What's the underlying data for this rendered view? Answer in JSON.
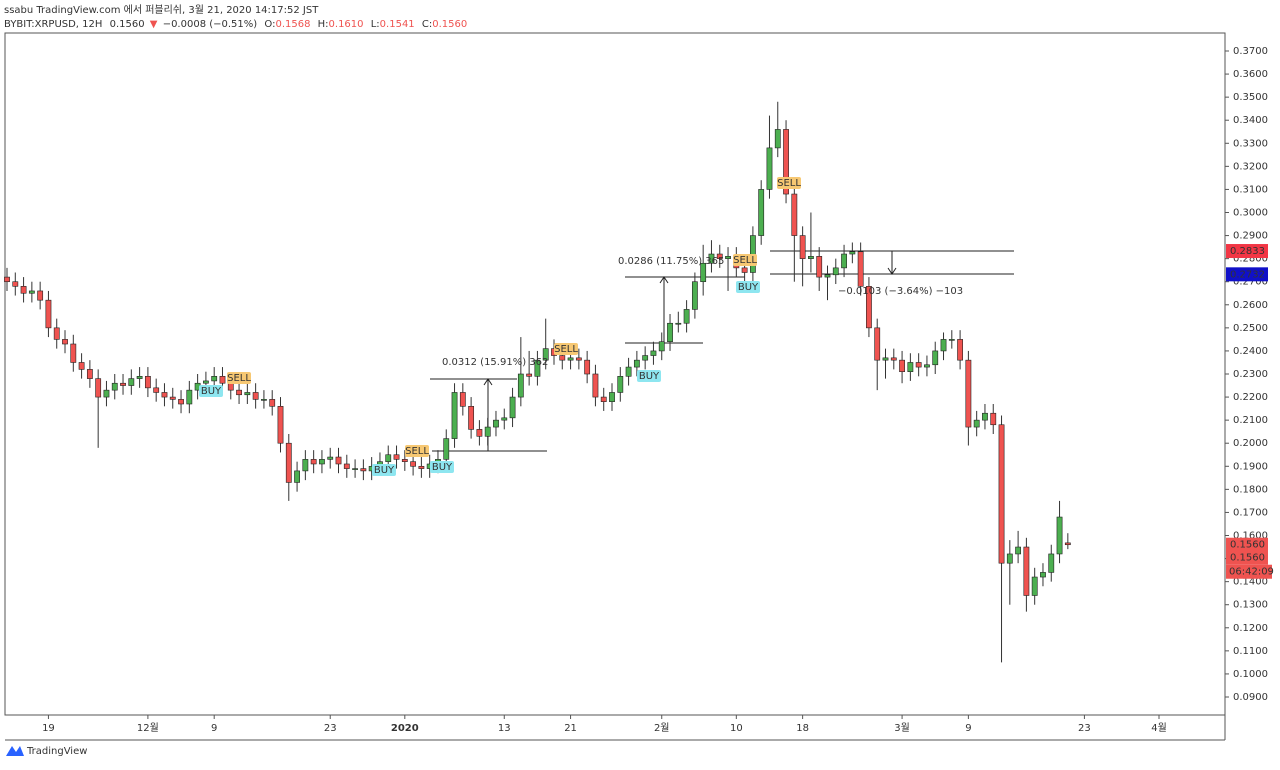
{
  "header": {
    "line1": "ssabu TradingView.com 에서 퍼블리쉬, 3월 21, 2020 14:17:52 JST",
    "symbol": "BYBIT:XRPUSD, 12H",
    "last": "0.1560",
    "change_arrow": "▼",
    "change": "−0.0008 (−0.51%)",
    "o_label": "O:",
    "o": "0.1568",
    "h_label": "H:",
    "h": "0.1610",
    "l_label": "L:",
    "l": "0.1541",
    "c_label": "C:",
    "c": "0.1560"
  },
  "footer": {
    "logo": "TradingView"
  },
  "chart_data": {
    "type": "candlestick",
    "categories": [
      null,
      null,
      null,
      null,
      null,
      "19",
      null,
      null,
      null,
      null,
      null,
      null,
      null,
      null,
      null,
      null,
      null,
      "12월",
      null,
      null,
      null,
      null,
      null,
      null,
      null,
      "9",
      null,
      null,
      null,
      null,
      null,
      null,
      null,
      null,
      null,
      null,
      null,
      null,
      null,
      "23",
      null,
      null,
      null,
      null,
      null,
      null,
      null,
      null,
      "2020",
      null,
      null,
      null,
      null,
      null,
      null,
      null,
      null,
      null,
      null,
      null,
      "13",
      null,
      null,
      null,
      null,
      null,
      null,
      null,
      "21",
      null,
      null,
      null,
      null,
      null,
      null,
      null,
      null,
      null,
      null,
      "2월",
      null,
      null,
      null,
      null,
      null,
      null,
      null,
      null,
      "10",
      null,
      null,
      null,
      null,
      null,
      null,
      null,
      "18",
      null,
      null,
      null,
      null,
      null,
      null,
      null,
      null,
      null,
      null,
      null,
      "3월",
      null,
      null,
      null,
      null,
      null,
      null,
      null,
      "9",
      null,
      null,
      null,
      null,
      null,
      null,
      null,
      null,
      null,
      null,
      null,
      null,
      null,
      "23",
      null,
      null,
      null,
      null,
      null,
      null,
      null,
      null,
      "4월"
    ],
    "open": [
      0.272,
      0.27,
      0.268,
      0.265,
      0.266,
      0.262,
      0.25,
      0.245,
      0.243,
      0.235,
      0.232,
      0.228,
      0.22,
      0.223,
      0.226,
      0.225,
      0.228,
      0.229,
      0.224,
      0.222,
      0.22,
      0.219,
      0.217,
      0.223,
      0.226,
      0.227,
      0.229,
      0.226,
      0.223,
      0.221,
      0.222,
      0.219,
      0.219,
      0.216,
      0.2,
      0.183,
      0.188,
      0.193,
      0.191,
      0.193,
      0.194,
      0.191,
      0.189,
      0.189,
      0.188,
      0.19,
      0.192,
      0.195,
      0.193,
      0.192,
      0.19,
      0.189,
      0.191,
      0.193,
      0.202,
      0.222,
      0.216,
      0.206,
      0.203,
      0.207,
      0.21,
      0.211,
      0.22,
      0.23,
      0.229,
      0.236,
      0.241,
      0.238,
      0.236,
      0.237,
      0.236,
      0.23,
      0.22,
      0.218,
      0.222,
      0.229,
      0.233,
      0.236,
      0.238,
      0.24,
      0.244,
      0.252,
      0.252,
      0.258,
      0.27,
      0.278,
      0.282,
      0.28,
      0.281,
      0.276,
      0.274,
      0.29,
      0.31,
      0.328,
      0.336,
      0.308,
      0.29,
      0.28,
      0.281,
      0.272,
      0.273,
      0.276,
      0.282,
      0.283,
      0.268,
      0.25,
      0.236,
      0.237,
      0.236,
      0.231,
      0.235,
      0.233,
      0.234,
      0.24,
      0.245,
      0.245,
      0.236,
      0.207,
      0.21,
      0.213,
      0.208,
      0.148,
      0.152,
      0.155,
      0.134,
      0.142,
      0.144,
      0.152,
      0.1568,
      null,
      null,
      null,
      null,
      null,
      null,
      null,
      null,
      null,
      null,
      null
    ],
    "high": [
      0.276,
      0.274,
      0.272,
      0.27,
      0.27,
      0.266,
      0.254,
      0.249,
      0.247,
      0.239,
      0.236,
      0.232,
      0.227,
      0.23,
      0.23,
      0.232,
      0.233,
      0.233,
      0.228,
      0.226,
      0.224,
      0.223,
      0.227,
      0.23,
      0.231,
      0.233,
      0.233,
      0.23,
      0.227,
      0.226,
      0.226,
      0.223,
      0.223,
      0.22,
      0.204,
      0.192,
      0.197,
      0.197,
      0.197,
      0.198,
      0.198,
      0.195,
      0.193,
      0.193,
      0.194,
      0.196,
      0.199,
      0.199,
      0.197,
      0.196,
      0.194,
      0.195,
      0.197,
      0.206,
      0.226,
      0.226,
      0.22,
      0.21,
      0.211,
      0.214,
      0.215,
      0.224,
      0.246,
      0.24,
      0.24,
      0.254,
      0.245,
      0.242,
      0.241,
      0.241,
      0.24,
      0.234,
      0.224,
      0.226,
      0.233,
      0.237,
      0.24,
      0.242,
      0.244,
      0.248,
      0.256,
      0.257,
      0.262,
      0.274,
      0.286,
      0.288,
      0.286,
      0.285,
      0.285,
      0.28,
      0.294,
      0.314,
      0.342,
      0.348,
      0.34,
      0.312,
      0.294,
      0.3,
      0.285,
      0.277,
      0.28,
      0.286,
      0.287,
      0.287,
      0.272,
      0.254,
      0.241,
      0.241,
      0.24,
      0.239,
      0.239,
      0.238,
      0.244,
      0.248,
      0.249,
      0.249,
      0.24,
      0.214,
      0.217,
      0.217,
      0.212,
      0.158,
      0.162,
      0.159,
      0.146,
      0.148,
      0.156,
      0.175,
      0.161,
      null,
      null,
      null,
      null,
      null,
      null,
      null,
      null,
      null,
      null,
      null
    ],
    "low": [
      0.266,
      0.264,
      0.261,
      0.261,
      0.258,
      0.246,
      0.241,
      0.239,
      0.231,
      0.228,
      0.224,
      0.198,
      0.216,
      0.219,
      0.221,
      0.221,
      0.224,
      0.22,
      0.218,
      0.216,
      0.215,
      0.213,
      0.213,
      0.219,
      0.222,
      0.223,
      0.222,
      0.219,
      0.217,
      0.217,
      0.215,
      0.215,
      0.212,
      0.196,
      0.175,
      0.179,
      0.184,
      0.187,
      0.187,
      0.189,
      0.187,
      0.185,
      0.185,
      0.184,
      0.184,
      0.186,
      0.188,
      0.189,
      0.188,
      0.186,
      0.185,
      0.185,
      0.187,
      0.189,
      0.198,
      0.212,
      0.202,
      0.199,
      0.199,
      0.203,
      0.206,
      0.207,
      0.216,
      0.225,
      0.225,
      0.232,
      0.234,
      0.232,
      0.232,
      0.232,
      0.226,
      0.216,
      0.214,
      0.214,
      0.218,
      0.225,
      0.229,
      0.232,
      0.234,
      0.236,
      0.24,
      0.248,
      0.248,
      0.254,
      0.264,
      0.274,
      0.276,
      0.266,
      0.272,
      0.27,
      0.27,
      0.286,
      0.306,
      0.324,
      0.304,
      0.27,
      0.268,
      0.274,
      0.266,
      0.262,
      0.269,
      0.272,
      0.278,
      0.264,
      0.246,
      0.223,
      0.228,
      0.232,
      0.226,
      0.227,
      0.229,
      0.229,
      0.23,
      0.236,
      0.241,
      0.232,
      0.199,
      0.203,
      0.206,
      0.204,
      0.105,
      0.13,
      0.148,
      0.127,
      0.13,
      0.138,
      0.14,
      0.148,
      0.1541,
      null,
      null,
      null,
      null,
      null,
      null,
      null,
      null,
      null,
      null,
      null
    ],
    "close": [
      0.27,
      0.268,
      0.265,
      0.266,
      0.262,
      0.25,
      0.245,
      0.243,
      0.235,
      0.232,
      0.228,
      0.22,
      0.223,
      0.226,
      0.225,
      0.228,
      0.229,
      0.224,
      0.222,
      0.22,
      0.219,
      0.217,
      0.223,
      0.226,
      0.227,
      0.229,
      0.226,
      0.223,
      0.221,
      0.222,
      0.219,
      0.219,
      0.216,
      0.2,
      0.183,
      0.188,
      0.193,
      0.191,
      0.193,
      0.194,
      0.191,
      0.189,
      0.189,
      0.188,
      0.19,
      0.192,
      0.195,
      0.193,
      0.192,
      0.19,
      0.189,
      0.191,
      0.193,
      0.202,
      0.222,
      0.216,
      0.206,
      0.203,
      0.207,
      0.21,
      0.211,
      0.22,
      0.23,
      0.229,
      0.236,
      0.241,
      0.238,
      0.236,
      0.237,
      0.236,
      0.23,
      0.22,
      0.218,
      0.222,
      0.229,
      0.233,
      0.236,
      0.238,
      0.24,
      0.244,
      0.252,
      0.252,
      0.258,
      0.27,
      0.278,
      0.282,
      0.28,
      0.281,
      0.276,
      0.274,
      0.29,
      0.31,
      0.328,
      0.336,
      0.308,
      0.29,
      0.28,
      0.281,
      0.272,
      0.273,
      0.276,
      0.282,
      0.283,
      0.268,
      0.25,
      0.236,
      0.237,
      0.236,
      0.231,
      0.235,
      0.233,
      0.234,
      0.24,
      0.245,
      0.245,
      0.236,
      0.207,
      0.21,
      0.213,
      0.208,
      0.148,
      0.152,
      0.155,
      0.134,
      0.142,
      0.144,
      0.152,
      0.168,
      0.156,
      null,
      null,
      null,
      null,
      null,
      null,
      null,
      null,
      null,
      null,
      null
    ],
    "up_color": "#4caf50",
    "down_color": "#ef5350",
    "ylim": [
      0.0822,
      0.3778
    ],
    "yticks": [
      {
        "value": 0.09,
        "label": "0.0900"
      },
      {
        "value": 0.1,
        "label": "0.1000"
      },
      {
        "value": 0.11,
        "label": "0.1100"
      },
      {
        "value": 0.12,
        "label": "0.1200"
      },
      {
        "value": 0.13,
        "label": "0.1300"
      },
      {
        "value": 0.14,
        "label": "0.1400"
      },
      {
        "value": 0.15,
        "label": "0.1500"
      },
      {
        "value": 0.16,
        "label": "0.1600"
      },
      {
        "value": 0.17,
        "label": "0.1700"
      },
      {
        "value": 0.18,
        "label": "0.1800"
      },
      {
        "value": 0.19,
        "label": "0.1900"
      },
      {
        "value": 0.2,
        "label": "0.2000"
      },
      {
        "value": 0.21,
        "label": "0.2100"
      },
      {
        "value": 0.22,
        "label": "0.2200"
      },
      {
        "value": 0.23,
        "label": "0.2300"
      },
      {
        "value": 0.24,
        "label": "0.2400"
      },
      {
        "value": 0.25,
        "label": "0.2500"
      },
      {
        "value": 0.26,
        "label": "0.2600"
      },
      {
        "value": 0.27,
        "label": "0.2700"
      },
      {
        "value": 0.28,
        "label": "0.2800"
      },
      {
        "value": 0.29,
        "label": "0.2900"
      },
      {
        "value": 0.3,
        "label": "0.3000"
      },
      {
        "value": 0.31,
        "label": "0.3100"
      },
      {
        "value": 0.32,
        "label": "0.3200"
      },
      {
        "value": 0.33,
        "label": "0.3300"
      },
      {
        "value": 0.34,
        "label": "0.3400"
      },
      {
        "value": 0.35,
        "label": "0.3500"
      },
      {
        "value": 0.36,
        "label": "0.3600"
      },
      {
        "value": 0.37,
        "label": "0.3700"
      }
    ],
    "grid": false,
    "price_labels": [
      {
        "value": 0.2833,
        "label": "0.2833",
        "color": "#f23645"
      },
      {
        "value": 0.2732,
        "label": "0.2732",
        "color": "#1010c8"
      },
      {
        "value": 0.156,
        "label": "0.1560",
        "color": "#ef5350"
      },
      {
        "value": 0.156,
        "label": "0.1560",
        "color": "#ef5350"
      }
    ],
    "countdown": "06:42:09",
    "annotations": [
      "SELL",
      "BUY",
      "SELL",
      "BUY",
      "BUY",
      "SELL",
      "BUY",
      "SELL",
      "BUY",
      "SELL"
    ],
    "measurements": [
      "0.0312 (15.91%) 362",
      "0.0286 (11.75%) 365",
      "−0.0103 (−3.64%) −103"
    ]
  }
}
